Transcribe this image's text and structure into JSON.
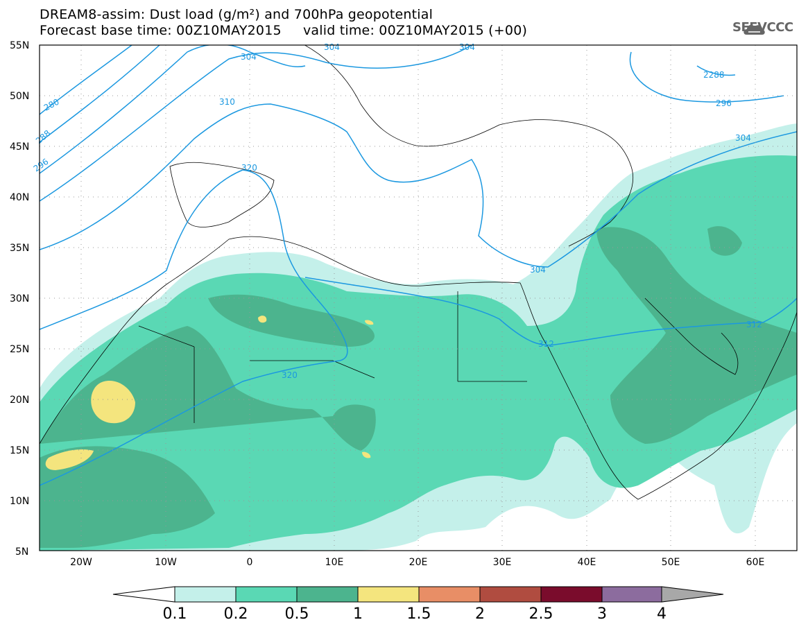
{
  "title": {
    "line1": "DREAM8-assim: Dust load (g/m²) and 700hPa geopotential",
    "line2": "Forecast base time: 00Z10MAY2015     valid time: 00Z10MAY2015 (+00)"
  },
  "logo": {
    "text": "SEEVCCC",
    "icon": "cloud-logo-icon"
  },
  "axes": {
    "lat_labels": [
      "55N",
      "50N",
      "45N",
      "40N",
      "35N",
      "30N",
      "25N",
      "20N",
      "15N",
      "10N",
      "5N"
    ],
    "lon_labels": [
      "20W",
      "10W",
      "0",
      "10E",
      "20E",
      "30E",
      "40E",
      "50E",
      "60E"
    ]
  },
  "contours": {
    "color": "#1b98e0",
    "labels": [
      "280",
      "288",
      "296",
      "304",
      "304",
      "304",
      "310",
      "320",
      "304",
      "312",
      "312",
      "320",
      "304",
      "2288",
      "296",
      "304"
    ]
  },
  "colorbar": {
    "bins": [
      "0.1",
      "0.2",
      "0.5",
      "1",
      "1.5",
      "2",
      "2.5",
      "3",
      "4"
    ],
    "colors": [
      "#ffffff",
      "#c4f0ea",
      "#5ad8b4",
      "#4cb48e",
      "#f4e57e",
      "#e88e66",
      "#b04c40",
      "#7a0c2c",
      "#8c6c9e",
      "#a8a8a8"
    ]
  }
}
